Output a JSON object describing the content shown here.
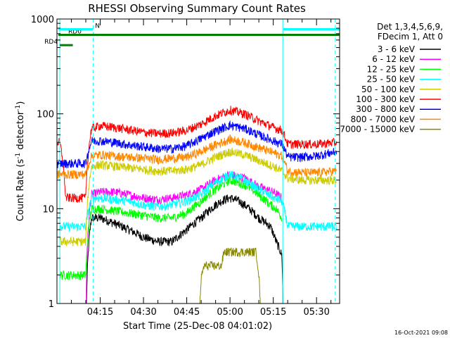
{
  "chart_data": {
    "type": "line",
    "title": "RHESSI Observing Summary Count Rates",
    "xlabel": "Start Time (25-Dec-08 04:01:02)",
    "ylabel": "Count Rate (s",
    "ylabel_sup1": "-1",
    "ylabel_mid": " detector",
    "ylabel_sup2": "-1",
    "ylabel_end": ")",
    "y_scale": "log",
    "ylim": [
      1,
      1000
    ],
    "xlim_minutes": [
      240.0,
      338.0
    ],
    "x_ticks": [
      {
        "minutes": 255,
        "label": "04:15"
      },
      {
        "minutes": 270,
        "label": "04:30"
      },
      {
        "minutes": 285,
        "label": "04:45"
      },
      {
        "minutes": 300,
        "label": "05:00"
      },
      {
        "minutes": 315,
        "label": "05:15"
      },
      {
        "minutes": 330,
        "label": "05:30"
      }
    ],
    "y_ticks": [
      {
        "value": 1,
        "label": "1"
      },
      {
        "value": 10,
        "label": "10"
      },
      {
        "value": 100,
        "label": "100"
      },
      {
        "value": 1000,
        "label": "1000"
      }
    ],
    "legend_position": "right",
    "legend_header": [
      "Det 1,3,4,5,6,9,",
      "FDecim 1, Att 0"
    ],
    "series": [
      {
        "name": "3 - 6 keV",
        "color": "#000000",
        "x": [
          241,
          243,
          244,
          250,
          252,
          255,
          260,
          265,
          270,
          275,
          280,
          285,
          290,
          295,
          298,
          300,
          302,
          305,
          310,
          314,
          316,
          318,
          318.5
        ],
        "values": [
          0,
          0,
          0,
          0,
          8,
          8,
          7,
          6,
          5,
          4.5,
          4.5,
          6,
          8,
          11,
          12.5,
          13,
          12.5,
          11,
          8,
          6.5,
          4.5,
          3.2,
          0
        ]
      },
      {
        "name": "6 - 12 keV",
        "color": "#ff00ff",
        "x": [
          250,
          252,
          255,
          260,
          265,
          270,
          275,
          280,
          285,
          290,
          295,
          300,
          305,
          310,
          315,
          318
        ],
        "values": [
          0,
          14,
          15,
          15,
          14,
          13,
          12.5,
          13,
          14,
          16,
          20,
          23,
          21,
          17,
          15,
          13
        ]
      },
      {
        "name": "12 - 25 keV",
        "color": "#00ff00",
        "x": [
          241,
          243,
          244,
          250,
          252,
          255,
          260,
          265,
          270,
          275,
          280,
          285,
          290,
          295,
          300,
          305,
          310,
          314,
          316,
          318
        ],
        "values": [
          2,
          2,
          2,
          2,
          10,
          10,
          9.5,
          9,
          8.5,
          8,
          8,
          9,
          12,
          16,
          20,
          18,
          14,
          11,
          10,
          8
        ]
      },
      {
        "name": "25 - 50 keV",
        "color": "#00ffff",
        "x": [
          241,
          243,
          244,
          250,
          252,
          255,
          260,
          265,
          270,
          275,
          280,
          285,
          290,
          295,
          300,
          305,
          310,
          315,
          318,
          320,
          325,
          330,
          337
        ],
        "values": [
          6.5,
          6.5,
          6.5,
          6.5,
          13,
          13,
          12.5,
          12,
          11,
          10.5,
          11,
          12,
          14,
          19,
          23,
          20,
          16,
          13,
          12,
          6.5,
          6.5,
          6.5,
          6.5
        ]
      },
      {
        "name": "50 - 100 keV",
        "color": "#cccc00",
        "x": [
          241,
          243,
          244,
          250,
          252,
          255,
          260,
          265,
          270,
          275,
          280,
          285,
          290,
          295,
          300,
          305,
          310,
          315,
          318,
          320,
          325,
          330,
          337
        ],
        "values": [
          4.5,
          4.5,
          4.5,
          4.5,
          28,
          29,
          28,
          27,
          26,
          25,
          25,
          26,
          29,
          35,
          40,
          37,
          32,
          28,
          25,
          21,
          20,
          20,
          20
        ]
      },
      {
        "name": "100 - 300 keV",
        "color": "#ff0000",
        "x": [
          240,
          241,
          243,
          250,
          252,
          255,
          260,
          265,
          270,
          275,
          280,
          285,
          290,
          295,
          300,
          305,
          310,
          315,
          318,
          320,
          325,
          330,
          337
        ],
        "values": [
          50,
          50,
          13,
          13,
          70,
          75,
          72,
          68,
          64,
          62,
          63,
          67,
          78,
          95,
          110,
          100,
          84,
          72,
          67,
          48,
          48,
          48,
          50
        ]
      },
      {
        "name": "300 - 800 keV",
        "color": "#0000ff",
        "x": [
          240,
          241,
          243,
          250,
          252,
          255,
          260,
          265,
          270,
          275,
          280,
          285,
          290,
          295,
          300,
          305,
          310,
          315,
          318,
          320,
          325,
          330,
          337
        ],
        "values": [
          30,
          30,
          30,
          30,
          52,
          52,
          50,
          47,
          45,
          43,
          43,
          46,
          55,
          66,
          76,
          70,
          60,
          52,
          48,
          35,
          35,
          36,
          40
        ]
      },
      {
        "name": "800 - 7000 keV",
        "color": "#ff8800",
        "x": [
          240,
          241,
          243,
          250,
          252,
          255,
          260,
          265,
          270,
          275,
          280,
          285,
          290,
          295,
          300,
          305,
          310,
          315,
          318,
          320,
          325,
          330,
          337
        ],
        "values": [
          23,
          23,
          23,
          23,
          36,
          37,
          36,
          35,
          34,
          33,
          34,
          35,
          40,
          47,
          54,
          50,
          44,
          39,
          36,
          25,
          24,
          24,
          25
        ]
      },
      {
        "name": "7000 - 15000 keV",
        "color": "#888800",
        "x": [
          289,
          290,
          291,
          297,
          298,
          300,
          305,
          309,
          310,
          311
        ],
        "values": [
          0,
          1.8,
          2.5,
          2.5,
          3.5,
          3.5,
          3.5,
          3.5,
          2.0,
          0
        ]
      }
    ],
    "attenuator_markers": [
      {
        "label": "RD0",
        "color": "#008000",
        "x_start": 240.5,
        "x_end": 338.0,
        "level": 680
      },
      {
        "label": "RD4",
        "color": "#008000",
        "x_start": 241.0,
        "x_end": 245.5,
        "level": 530
      },
      {
        "label": "N",
        "color": "#00ffff",
        "x_start": 240.5,
        "x_end": 252.5,
        "level": 780
      },
      {
        "label": "",
        "color": "#00ffff",
        "x_start": 318.5,
        "x_end": 338.0,
        "level": 780
      }
    ],
    "night_lines_minutes": [
      252.6,
      336.5
    ],
    "day_lines_minutes": [
      241.0,
      318.3
    ],
    "footer_timestamp": "16-Oct-2021 09:08"
  }
}
